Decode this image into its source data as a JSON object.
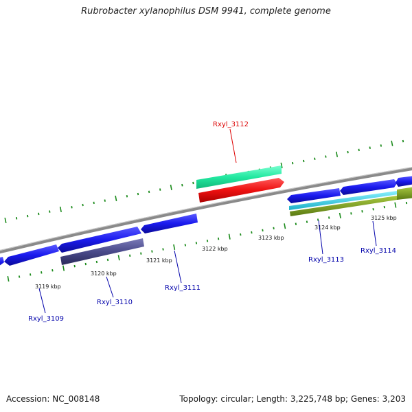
{
  "title": "Rubrobacter xylanophilus DSM 9941, complete genome",
  "footer": {
    "accession": "Accession: NC_008148",
    "summary": "Topology: circular; Length: 3,225,748 bp; Genes: 3,203"
  },
  "scale_labels": [
    "3119 kbp",
    "3120 kbp",
    "3121 kbp",
    "3122 kbp",
    "3123 kbp",
    "3124 kbp",
    "3125 kbp"
  ],
  "gene_labels": [
    {
      "name": "Rxyl_3112",
      "color": "#dd0000"
    },
    {
      "name": "Rxyl_3109",
      "color": "#0000aa"
    },
    {
      "name": "Rxyl_3110",
      "color": "#0000aa"
    },
    {
      "name": "Rxyl_3111",
      "color": "#0000aa"
    },
    {
      "name": "Rxyl_3113",
      "color": "#0000aa"
    },
    {
      "name": "Rxyl_3114",
      "color": "#0000aa"
    }
  ],
  "colors": {
    "backbone": "#888888",
    "cds": "#1a1aee",
    "highlight_gene": "#ee1111",
    "teal_feature": "#22e8a0",
    "purple_feature": "#4a4a8a",
    "cyan_feature": "#22c8d8",
    "olive_feature": "#7a9a22",
    "ticks": "#1a8a1a"
  }
}
